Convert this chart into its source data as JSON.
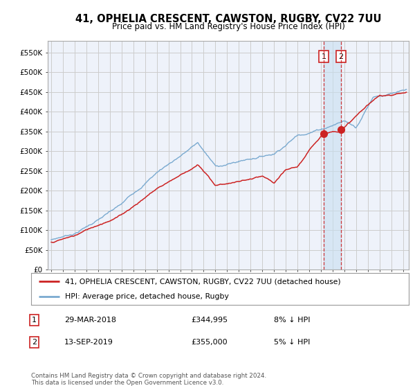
{
  "title": "41, OPHELIA CRESCENT, CAWSTON, RUGBY, CV22 7UU",
  "subtitle": "Price paid vs. HM Land Registry's House Price Index (HPI)",
  "ylabel_ticks": [
    "£0",
    "£50K",
    "£100K",
    "£150K",
    "£200K",
    "£250K",
    "£300K",
    "£350K",
    "£400K",
    "£450K",
    "£500K",
    "£550K"
  ],
  "ytick_vals": [
    0,
    50000,
    100000,
    150000,
    200000,
    250000,
    300000,
    350000,
    400000,
    450000,
    500000,
    550000
  ],
  "ylim": [
    0,
    575000
  ],
  "xlim_start": 1994.7,
  "xlim_end": 2025.5,
  "hpi_color": "#7aaad0",
  "price_color": "#cc2222",
  "shade_color": "#c8dff0",
  "marker1_x": 2018.24,
  "marker2_x": 2019.71,
  "marker1_y": 344995,
  "marker2_y": 355000,
  "transaction1": {
    "num": "1",
    "date": "29-MAR-2018",
    "price": "£344,995",
    "hpi": "8% ↓ HPI"
  },
  "transaction2": {
    "num": "2",
    "date": "13-SEP-2019",
    "price": "£355,000",
    "hpi": "5% ↓ HPI"
  },
  "legend_label1": "41, OPHELIA CRESCENT, CAWSTON, RUGBY, CV22 7UU (detached house)",
  "legend_label2": "HPI: Average price, detached house, Rugby",
  "footnote": "Contains HM Land Registry data © Crown copyright and database right 2024.\nThis data is licensed under the Open Government Licence v3.0.",
  "bg_color": "#ffffff",
  "grid_color": "#cccccc",
  "plot_bg": "#eef2fa"
}
